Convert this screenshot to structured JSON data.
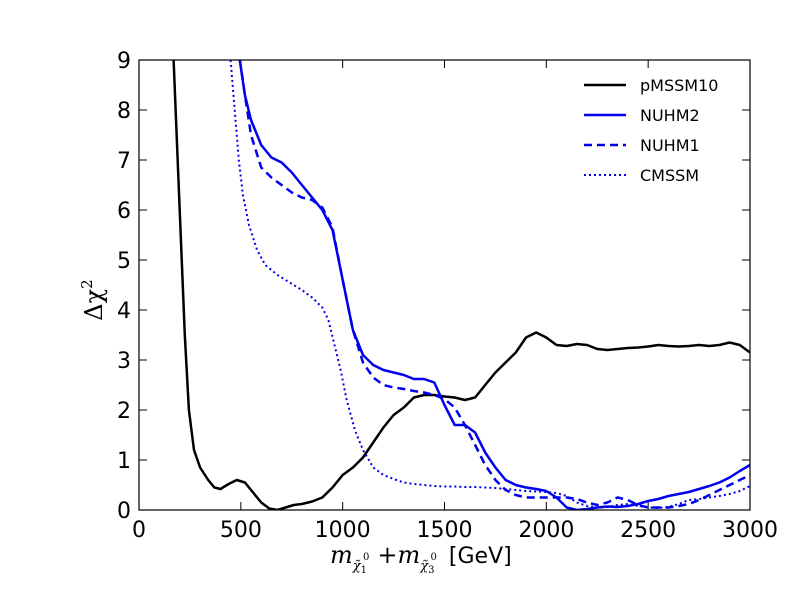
{
  "chart_data": {
    "type": "line",
    "xlabel": "m_{χ̃1⁰} + m_{χ̃3⁰} [GeV]",
    "xlabel_parts": {
      "m1": "m",
      "sub1": "χ̃",
      "sub1_idx": "1",
      "sup1": "0",
      "plus": "+",
      "m2": "m",
      "sub2": "χ̃",
      "sub2_idx": "3",
      "sup2": "0",
      "unit": "[GeV]"
    },
    "ylabel": "Δχ²",
    "ylabel_parts": {
      "delta": "Δχ",
      "exp": "2"
    },
    "xlim": [
      0,
      3000
    ],
    "ylim": [
      0,
      9
    ],
    "xticks": [
      0,
      500,
      1000,
      1500,
      2000,
      2500,
      3000
    ],
    "yticks": [
      0,
      1,
      2,
      3,
      4,
      5,
      6,
      7,
      8,
      9
    ],
    "legend_position": "top-right",
    "series": [
      {
        "name": "pMSSM10",
        "color": "#000000",
        "style": "solid",
        "points": [
          [
            170,
            9
          ],
          [
            200,
            6
          ],
          [
            225,
            3.5
          ],
          [
            245,
            2
          ],
          [
            270,
            1.2
          ],
          [
            300,
            0.85
          ],
          [
            340,
            0.6
          ],
          [
            370,
            0.45
          ],
          [
            400,
            0.42
          ],
          [
            440,
            0.52
          ],
          [
            480,
            0.6
          ],
          [
            520,
            0.55
          ],
          [
            560,
            0.35
          ],
          [
            600,
            0.15
          ],
          [
            640,
            0.03
          ],
          [
            680,
            0
          ],
          [
            720,
            0.05
          ],
          [
            760,
            0.1
          ],
          [
            800,
            0.12
          ],
          [
            850,
            0.17
          ],
          [
            900,
            0.25
          ],
          [
            950,
            0.45
          ],
          [
            1000,
            0.7
          ],
          [
            1050,
            0.85
          ],
          [
            1100,
            1.05
          ],
          [
            1150,
            1.35
          ],
          [
            1200,
            1.65
          ],
          [
            1250,
            1.9
          ],
          [
            1300,
            2.05
          ],
          [
            1350,
            2.25
          ],
          [
            1400,
            2.3
          ],
          [
            1450,
            2.3
          ],
          [
            1500,
            2.27
          ],
          [
            1550,
            2.25
          ],
          [
            1600,
            2.2
          ],
          [
            1650,
            2.25
          ],
          [
            1700,
            2.5
          ],
          [
            1750,
            2.75
          ],
          [
            1800,
            2.95
          ],
          [
            1850,
            3.15
          ],
          [
            1900,
            3.45
          ],
          [
            1950,
            3.55
          ],
          [
            2000,
            3.45
          ],
          [
            2050,
            3.3
          ],
          [
            2100,
            3.28
          ],
          [
            2150,
            3.32
          ],
          [
            2200,
            3.3
          ],
          [
            2250,
            3.22
          ],
          [
            2300,
            3.2
          ],
          [
            2350,
            3.22
          ],
          [
            2400,
            3.24
          ],
          [
            2450,
            3.25
          ],
          [
            2500,
            3.27
          ],
          [
            2550,
            3.3
          ],
          [
            2600,
            3.28
          ],
          [
            2650,
            3.27
          ],
          [
            2700,
            3.28
          ],
          [
            2750,
            3.3
          ],
          [
            2800,
            3.28
          ],
          [
            2850,
            3.3
          ],
          [
            2900,
            3.35
          ],
          [
            2950,
            3.3
          ],
          [
            3000,
            3.15
          ]
        ]
      },
      {
        "name": "NUHM2",
        "color": "#0000ee",
        "style": "solid",
        "points": [
          [
            495,
            9
          ],
          [
            520,
            8.3
          ],
          [
            550,
            7.8
          ],
          [
            600,
            7.3
          ],
          [
            650,
            7.05
          ],
          [
            700,
            6.95
          ],
          [
            750,
            6.75
          ],
          [
            800,
            6.5
          ],
          [
            850,
            6.25
          ],
          [
            900,
            6.0
          ],
          [
            950,
            5.6
          ],
          [
            1000,
            4.6
          ],
          [
            1050,
            3.6
          ],
          [
            1100,
            3.1
          ],
          [
            1150,
            2.9
          ],
          [
            1200,
            2.8
          ],
          [
            1250,
            2.75
          ],
          [
            1300,
            2.7
          ],
          [
            1350,
            2.62
          ],
          [
            1400,
            2.62
          ],
          [
            1450,
            2.55
          ],
          [
            1500,
            2.1
          ],
          [
            1550,
            1.7
          ],
          [
            1600,
            1.7
          ],
          [
            1650,
            1.55
          ],
          [
            1700,
            1.15
          ],
          [
            1750,
            0.85
          ],
          [
            1800,
            0.6
          ],
          [
            1850,
            0.5
          ],
          [
            1900,
            0.45
          ],
          [
            1950,
            0.42
          ],
          [
            2000,
            0.38
          ],
          [
            2050,
            0.25
          ],
          [
            2100,
            0.05
          ],
          [
            2150,
            0
          ],
          [
            2200,
            0.02
          ],
          [
            2250,
            0.05
          ],
          [
            2300,
            0.07
          ],
          [
            2350,
            0.06
          ],
          [
            2400,
            0.08
          ],
          [
            2450,
            0.12
          ],
          [
            2500,
            0.18
          ],
          [
            2550,
            0.22
          ],
          [
            2600,
            0.28
          ],
          [
            2650,
            0.32
          ],
          [
            2700,
            0.36
          ],
          [
            2750,
            0.42
          ],
          [
            2800,
            0.48
          ],
          [
            2850,
            0.55
          ],
          [
            2900,
            0.65
          ],
          [
            2950,
            0.78
          ],
          [
            3000,
            0.9
          ]
        ]
      },
      {
        "name": "NUHM1",
        "color": "#0000ee",
        "style": "dashed",
        "points": [
          [
            495,
            9
          ],
          [
            520,
            8.3
          ],
          [
            550,
            7.5
          ],
          [
            600,
            6.85
          ],
          [
            650,
            6.65
          ],
          [
            700,
            6.5
          ],
          [
            750,
            6.35
          ],
          [
            800,
            6.25
          ],
          [
            850,
            6.2
          ],
          [
            900,
            6.05
          ],
          [
            950,
            5.65
          ],
          [
            1000,
            4.6
          ],
          [
            1050,
            3.6
          ],
          [
            1100,
            2.95
          ],
          [
            1150,
            2.65
          ],
          [
            1200,
            2.5
          ],
          [
            1250,
            2.45
          ],
          [
            1300,
            2.42
          ],
          [
            1350,
            2.38
          ],
          [
            1400,
            2.35
          ],
          [
            1450,
            2.3
          ],
          [
            1500,
            2.22
          ],
          [
            1550,
            2.05
          ],
          [
            1600,
            1.7
          ],
          [
            1650,
            1.3
          ],
          [
            1700,
            0.9
          ],
          [
            1750,
            0.6
          ],
          [
            1800,
            0.4
          ],
          [
            1850,
            0.3
          ],
          [
            1900,
            0.25
          ],
          [
            1950,
            0.25
          ],
          [
            2000,
            0.25
          ],
          [
            2050,
            0.25
          ],
          [
            2100,
            0.25
          ],
          [
            2150,
            0.22
          ],
          [
            2200,
            0.15
          ],
          [
            2250,
            0.1
          ],
          [
            2300,
            0.15
          ],
          [
            2350,
            0.25
          ],
          [
            2400,
            0.2
          ],
          [
            2450,
            0.1
          ],
          [
            2500,
            0.05
          ],
          [
            2550,
            0.05
          ],
          [
            2600,
            0.05
          ],
          [
            2650,
            0.08
          ],
          [
            2700,
            0.12
          ],
          [
            2750,
            0.2
          ],
          [
            2800,
            0.3
          ],
          [
            2850,
            0.4
          ],
          [
            2900,
            0.5
          ],
          [
            2950,
            0.6
          ],
          [
            3000,
            0.7
          ]
        ]
      },
      {
        "name": "CMSSM",
        "color": "#0000ee",
        "style": "dotted",
        "points": [
          [
            450,
            9
          ],
          [
            470,
            8
          ],
          [
            490,
            7
          ],
          [
            510,
            6.3
          ],
          [
            540,
            5.7
          ],
          [
            580,
            5.2
          ],
          [
            620,
            4.9
          ],
          [
            680,
            4.7
          ],
          [
            740,
            4.55
          ],
          [
            800,
            4.4
          ],
          [
            850,
            4.25
          ],
          [
            900,
            4.05
          ],
          [
            930,
            3.8
          ],
          [
            960,
            3.3
          ],
          [
            990,
            2.8
          ],
          [
            1020,
            2.2
          ],
          [
            1060,
            1.6
          ],
          [
            1100,
            1.2
          ],
          [
            1150,
            0.85
          ],
          [
            1200,
            0.7
          ],
          [
            1250,
            0.62
          ],
          [
            1300,
            0.55
          ],
          [
            1350,
            0.52
          ],
          [
            1400,
            0.5
          ],
          [
            1450,
            0.48
          ],
          [
            1500,
            0.47
          ],
          [
            1550,
            0.47
          ],
          [
            1600,
            0.46
          ],
          [
            1650,
            0.46
          ],
          [
            1700,
            0.45
          ],
          [
            1750,
            0.44
          ],
          [
            1800,
            0.42
          ],
          [
            1850,
            0.4
          ],
          [
            1900,
            0.38
          ],
          [
            1950,
            0.37
          ],
          [
            2000,
            0.36
          ],
          [
            2050,
            0.34
          ],
          [
            2100,
            0.28
          ],
          [
            2150,
            0.15
          ],
          [
            2200,
            0.08
          ],
          [
            2250,
            0.05
          ],
          [
            2300,
            0.06
          ],
          [
            2350,
            0.1
          ],
          [
            2400,
            0.12
          ],
          [
            2450,
            0.08
          ],
          [
            2500,
            0.05
          ],
          [
            2550,
            0.04
          ],
          [
            2600,
            0.06
          ],
          [
            2650,
            0.12
          ],
          [
            2700,
            0.2
          ],
          [
            2750,
            0.22
          ],
          [
            2800,
            0.25
          ],
          [
            2850,
            0.28
          ],
          [
            2900,
            0.32
          ],
          [
            2950,
            0.38
          ],
          [
            3000,
            0.48
          ]
        ]
      }
    ]
  }
}
